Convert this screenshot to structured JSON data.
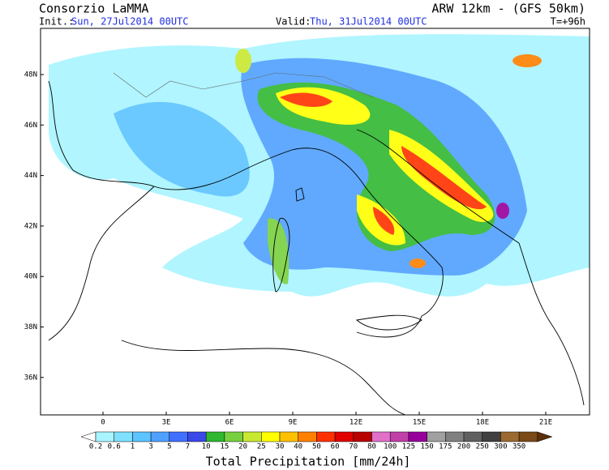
{
  "header": {
    "title": "Consorzio LaMMA",
    "model": "ARW 12km - (GFS 50km)",
    "init_label": "Init.:",
    "init": "Sun, 27Jul2014 00UTC",
    "valid_label": "Valid:",
    "valid": "Thu, 31Jul2014 00UTC",
    "lead": "T=+96h"
  },
  "map": {
    "lat_labels": [
      "48N",
      "46N",
      "44N",
      "42N",
      "40N",
      "38N",
      "36N"
    ],
    "lon_labels": [
      "0",
      "3E",
      "6E",
      "9E",
      "12E",
      "15E",
      "18E",
      "21E"
    ]
  },
  "colorbar": {
    "title": "Total Precipitation [mm/24h]",
    "labels": [
      "0.2",
      "0.6",
      "1",
      "3",
      "5",
      "7",
      "10",
      "15",
      "20",
      "25",
      "30",
      "40",
      "50",
      "60",
      "70",
      "80",
      "100",
      "125",
      "150",
      "175",
      "200",
      "250",
      "300",
      "350"
    ],
    "colors": [
      "#ffffff",
      "#a8f4ff",
      "#7fe0ff",
      "#5cc4ff",
      "#4fa0ff",
      "#4070ff",
      "#3a48e8",
      "#30b830",
      "#78d040",
      "#c8e830",
      "#ffff00",
      "#ffc000",
      "#ff8000",
      "#ff3000",
      "#e00000",
      "#b80000",
      "#e070c8",
      "#c040a8",
      "#98009c",
      "#a0a0a0",
      "#808080",
      "#606060",
      "#404040",
      "#9a6a30",
      "#7a4a18",
      "#5a2e08"
    ]
  }
}
